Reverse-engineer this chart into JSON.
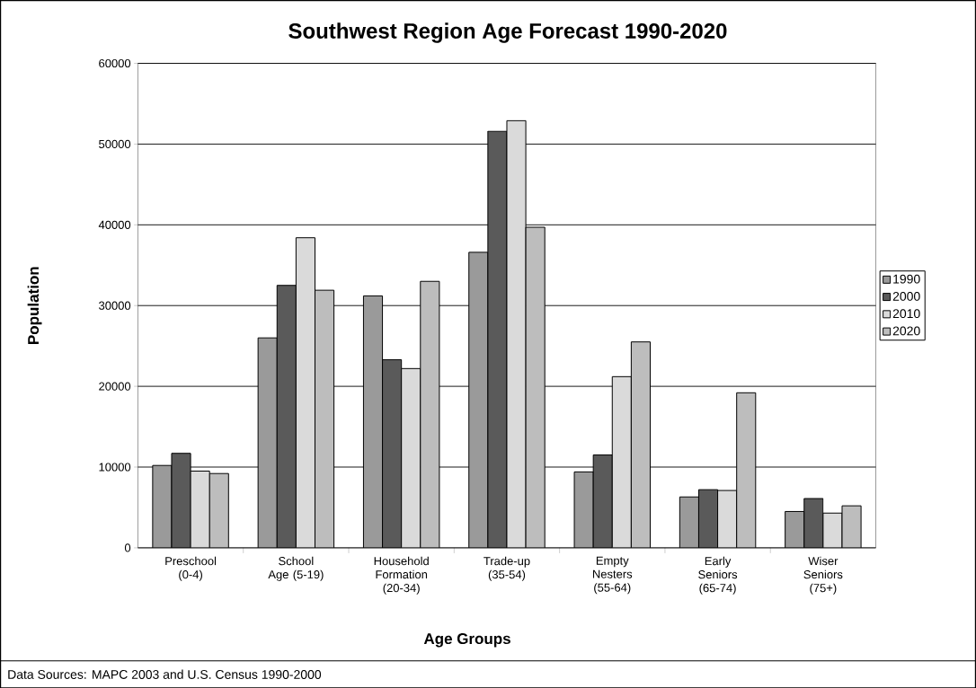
{
  "chart_data": {
    "type": "bar",
    "title": "Southwest Region Age Forecast 1990-2020",
    "xlabel": "Age Groups",
    "ylabel": "Population",
    "categories": [
      "Preschool (0-4)",
      "School Age (5-19)",
      "Household Formation (20-34)",
      "Trade-up (35-54)",
      "Empty Nesters (55-64)",
      "Early Seniors (65-74)",
      "Wiser Seniors (75+)"
    ],
    "series": [
      {
        "name": "1990",
        "color": "#9a9a9a",
        "values": [
          10200,
          26000,
          31200,
          36600,
          9400,
          6300,
          4500
        ]
      },
      {
        "name": "2000",
        "color": "#5a5a5a",
        "values": [
          11700,
          32500,
          23300,
          51600,
          11500,
          7200,
          6100
        ]
      },
      {
        "name": "2010",
        "color": "#dadada",
        "values": [
          9500,
          38400,
          22200,
          52900,
          21200,
          7100,
          4300
        ]
      },
      {
        "name": "2020",
        "color": "#bdbdbd",
        "values": [
          9200,
          31900,
          33000,
          39700,
          25500,
          19200,
          5200
        ]
      }
    ],
    "ylim": [
      0,
      60000
    ],
    "yticks": [
      0,
      10000,
      20000,
      30000,
      40000,
      50000,
      60000
    ],
    "grid": "y",
    "legend": "right",
    "annotations": [
      "Data Sources: MAPC 2003 and U.S. Census 1990-2000"
    ]
  }
}
